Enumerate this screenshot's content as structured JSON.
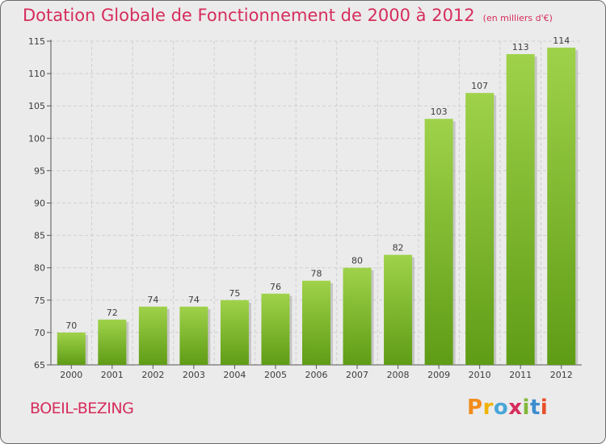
{
  "header": {
    "title": "Dotation Globale de Fonctionnement de 2000 à 2012",
    "subtitle": "(en milliers d'€)"
  },
  "footer": {
    "place": "BOEIL-BEZING",
    "logo": "Proxiti",
    "logo_colors": [
      "#f28c1c",
      "#f0b400",
      "#49a6d8",
      "#d62d5c",
      "#82b83a",
      "#3c8ecf",
      "#e8502a"
    ]
  },
  "chart_data": {
    "type": "bar",
    "title": "Dotation Globale de Fonctionnement de 2000 à 2012",
    "subtitle": "(en milliers d'€)",
    "xlabel": "",
    "ylabel": "",
    "categories": [
      "2000",
      "2001",
      "2002",
      "2003",
      "2004",
      "2005",
      "2006",
      "2007",
      "2008",
      "2009",
      "2010",
      "2011",
      "2012"
    ],
    "values": [
      70,
      72,
      74,
      74,
      75,
      76,
      78,
      80,
      82,
      103,
      107,
      113,
      114
    ],
    "data_labels": [
      "70",
      "72",
      "74",
      "74",
      "75",
      "76",
      "78",
      "80",
      "82",
      "103",
      "107",
      "113",
      "114"
    ],
    "yticks": [
      "65",
      "70",
      "75",
      "80",
      "85",
      "90",
      "95",
      "100",
      "105",
      "110",
      "115"
    ],
    "ylim": [
      65,
      115
    ],
    "grid": true,
    "bar_color": "#7cbc2e",
    "background_color": "#ebebeb"
  }
}
